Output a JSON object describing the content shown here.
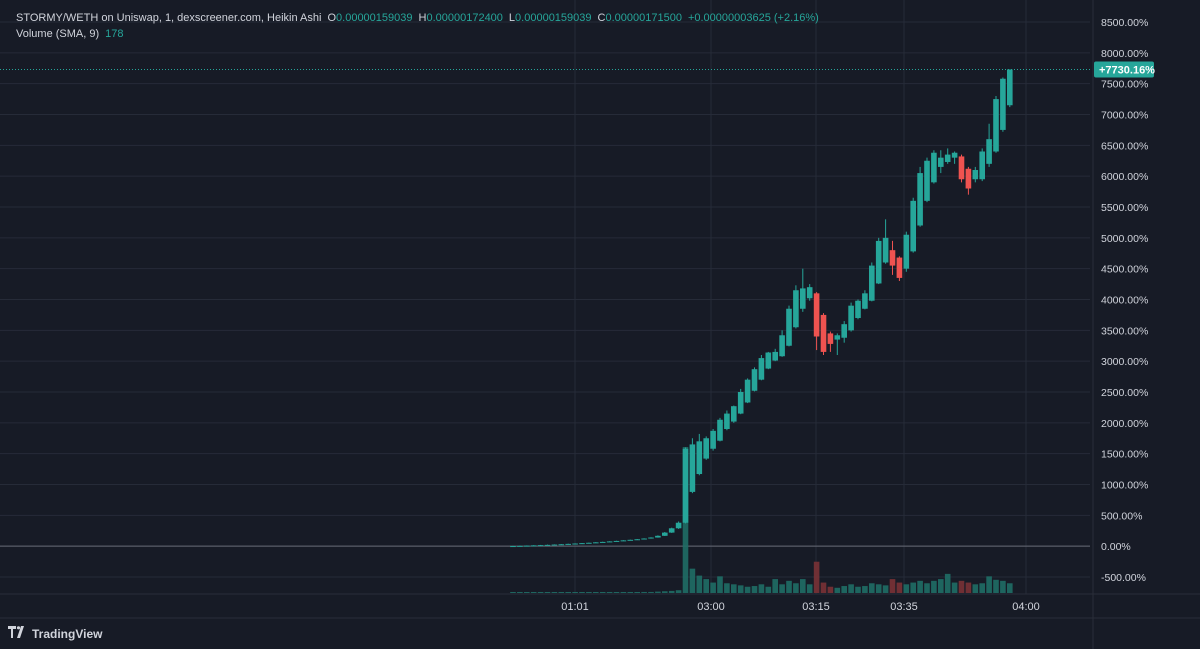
{
  "header": {
    "symbol": "STORMY/WETH on Uniswap, 1, dexscreener.com, Heikin Ashi",
    "o_label": "O",
    "o_value": "0.00000159039",
    "h_label": "H",
    "h_value": "0.00000172400",
    "l_label": "L",
    "l_value": "0.00000159039",
    "c_label": "C",
    "c_value": "0.00000171500",
    "change": "+0.00000003625 (+2.16%)",
    "volume_label": "Volume (SMA, 9)",
    "volume_value": "178"
  },
  "price_tag": "+7730.16%",
  "brand": {
    "icon": "tradingview-logo-icon",
    "name": "TradingView"
  },
  "colors": {
    "up": "#26a69a",
    "down": "#ef5350",
    "background": "#171b26",
    "grid": "#262b38",
    "text": "#d1d4dc"
  },
  "chart_data": {
    "type": "candlestick",
    "style": "Heikin Ashi",
    "y_unit": "%",
    "ylim": [
      -700,
      8700
    ],
    "y_ticks": [
      "8500.00%",
      "8000.00%",
      "7500.00%",
      "7000.00%",
      "6500.00%",
      "6000.00%",
      "5500.00%",
      "5000.00%",
      "4500.00%",
      "4000.00%",
      "3500.00%",
      "3000.00%",
      "2500.00%",
      "2000.00%",
      "1500.00%",
      "1000.00%",
      "500.00%",
      "0.00%",
      "-500.00%"
    ],
    "x_ticks": [
      "01:01",
      "03:00",
      "03:15",
      "03:35",
      "04:00"
    ],
    "grid": true,
    "candles": [
      {
        "o": 0,
        "h": 5,
        "l": 0,
        "c": 2,
        "v": 2
      },
      {
        "o": 2,
        "h": 8,
        "l": 0,
        "c": 5,
        "v": 2
      },
      {
        "o": 5,
        "h": 12,
        "l": 3,
        "c": 9,
        "v": 2
      },
      {
        "o": 9,
        "h": 16,
        "l": 7,
        "c": 13,
        "v": 2
      },
      {
        "o": 13,
        "h": 20,
        "l": 11,
        "c": 17,
        "v": 2
      },
      {
        "o": 17,
        "h": 25,
        "l": 15,
        "c": 21,
        "v": 2
      },
      {
        "o": 21,
        "h": 29,
        "l": 19,
        "c": 26,
        "v": 2
      },
      {
        "o": 26,
        "h": 34,
        "l": 24,
        "c": 31,
        "v": 2
      },
      {
        "o": 31,
        "h": 40,
        "l": 29,
        "c": 37,
        "v": 2
      },
      {
        "o": 37,
        "h": 46,
        "l": 35,
        "c": 43,
        "v": 2
      },
      {
        "o": 43,
        "h": 52,
        "l": 41,
        "c": 49,
        "v": 2
      },
      {
        "o": 49,
        "h": 58,
        "l": 47,
        "c": 55,
        "v": 2
      },
      {
        "o": 55,
        "h": 65,
        "l": 53,
        "c": 62,
        "v": 2
      },
      {
        "o": 62,
        "h": 72,
        "l": 60,
        "c": 69,
        "v": 2
      },
      {
        "o": 69,
        "h": 80,
        "l": 67,
        "c": 77,
        "v": 2
      },
      {
        "o": 77,
        "h": 88,
        "l": 75,
        "c": 85,
        "v": 2
      },
      {
        "o": 85,
        "h": 97,
        "l": 83,
        "c": 94,
        "v": 2
      },
      {
        "o": 94,
        "h": 106,
        "l": 92,
        "c": 103,
        "v": 2
      },
      {
        "o": 103,
        "h": 116,
        "l": 101,
        "c": 112,
        "v": 2
      },
      {
        "o": 112,
        "h": 128,
        "l": 110,
        "c": 124,
        "v": 3
      },
      {
        "o": 124,
        "h": 145,
        "l": 122,
        "c": 140,
        "v": 3
      },
      {
        "o": 140,
        "h": 175,
        "l": 138,
        "c": 168,
        "v": 4
      },
      {
        "o": 168,
        "h": 230,
        "l": 165,
        "c": 220,
        "v": 5
      },
      {
        "o": 220,
        "h": 300,
        "l": 215,
        "c": 290,
        "v": 6
      },
      {
        "o": 290,
        "h": 400,
        "l": 280,
        "c": 380,
        "v": 8
      },
      {
        "o": 380,
        "h": 1600,
        "l": 370,
        "c": 1580,
        "v": 420
      },
      {
        "o": 880,
        "h": 1750,
        "l": 860,
        "c": 1650,
        "v": 70
      },
      {
        "o": 1170,
        "h": 1820,
        "l": 1150,
        "c": 1700,
        "v": 50
      },
      {
        "o": 1420,
        "h": 1780,
        "l": 1400,
        "c": 1750,
        "v": 40
      },
      {
        "o": 1580,
        "h": 1900,
        "l": 1550,
        "c": 1870,
        "v": 30
      },
      {
        "o": 1710,
        "h": 2080,
        "l": 1700,
        "c": 2050,
        "v": 48
      },
      {
        "o": 1900,
        "h": 2200,
        "l": 1880,
        "c": 2150,
        "v": 28
      },
      {
        "o": 2020,
        "h": 2280,
        "l": 2000,
        "c": 2270,
        "v": 25
      },
      {
        "o": 2150,
        "h": 2550,
        "l": 2140,
        "c": 2500,
        "v": 22
      },
      {
        "o": 2330,
        "h": 2720,
        "l": 2320,
        "c": 2700,
        "v": 18
      },
      {
        "o": 2520,
        "h": 2900,
        "l": 2510,
        "c": 2870,
        "v": 20
      },
      {
        "o": 2700,
        "h": 3100,
        "l": 2690,
        "c": 3050,
        "v": 25
      },
      {
        "o": 2880,
        "h": 3150,
        "l": 2870,
        "c": 3140,
        "v": 18
      },
      {
        "o": 3010,
        "h": 3200,
        "l": 3000,
        "c": 3150,
        "v": 40
      },
      {
        "o": 3080,
        "h": 3500,
        "l": 3070,
        "c": 3420,
        "v": 25
      },
      {
        "o": 3250,
        "h": 3900,
        "l": 3240,
        "c": 3850,
        "v": 35
      },
      {
        "o": 3550,
        "h": 4230,
        "l": 3530,
        "c": 4150,
        "v": 28
      },
      {
        "o": 3850,
        "h": 4500,
        "l": 3800,
        "c": 4180,
        "v": 40
      },
      {
        "o": 4020,
        "h": 4250,
        "l": 3980,
        "c": 4200,
        "v": 25
      },
      {
        "o": 4100,
        "h": 4120,
        "l": 3180,
        "c": 3400,
        "v": 90
      },
      {
        "o": 3750,
        "h": 3780,
        "l": 3100,
        "c": 3150,
        "v": 30
      },
      {
        "o": 3450,
        "h": 3480,
        "l": 3150,
        "c": 3280,
        "v": 18
      },
      {
        "o": 3350,
        "h": 3450,
        "l": 3100,
        "c": 3420,
        "v": 15
      },
      {
        "o": 3380,
        "h": 3650,
        "l": 3300,
        "c": 3600,
        "v": 20
      },
      {
        "o": 3500,
        "h": 3950,
        "l": 3480,
        "c": 3900,
        "v": 25
      },
      {
        "o": 3700,
        "h": 4000,
        "l": 3680,
        "c": 3980,
        "v": 18
      },
      {
        "o": 3850,
        "h": 4150,
        "l": 3840,
        "c": 4100,
        "v": 20
      },
      {
        "o": 3980,
        "h": 4600,
        "l": 3970,
        "c": 4550,
        "v": 28
      },
      {
        "o": 4260,
        "h": 5000,
        "l": 4250,
        "c": 4950,
        "v": 25
      },
      {
        "o": 4600,
        "h": 5300,
        "l": 4580,
        "c": 5000,
        "v": 22
      },
      {
        "o": 4800,
        "h": 4950,
        "l": 4400,
        "c": 4550,
        "v": 40
      },
      {
        "o": 4680,
        "h": 4700,
        "l": 4300,
        "c": 4350,
        "v": 30
      },
      {
        "o": 4500,
        "h": 5100,
        "l": 4450,
        "c": 5050,
        "v": 25
      },
      {
        "o": 4780,
        "h": 5650,
        "l": 4760,
        "c": 5600,
        "v": 30
      },
      {
        "o": 5200,
        "h": 6150,
        "l": 5180,
        "c": 6050,
        "v": 35
      },
      {
        "o": 5600,
        "h": 6300,
        "l": 5580,
        "c": 6250,
        "v": 28
      },
      {
        "o": 5900,
        "h": 6420,
        "l": 5880,
        "c": 6380,
        "v": 35
      },
      {
        "o": 6150,
        "h": 6420,
        "l": 6050,
        "c": 6300,
        "v": 40
      },
      {
        "o": 6230,
        "h": 6450,
        "l": 6200,
        "c": 6350,
        "v": 55
      },
      {
        "o": 6300,
        "h": 6400,
        "l": 6200,
        "c": 6380,
        "v": 30
      },
      {
        "o": 6320,
        "h": 6350,
        "l": 5900,
        "c": 5950,
        "v": 35
      },
      {
        "o": 6120,
        "h": 6150,
        "l": 5700,
        "c": 5800,
        "v": 30
      },
      {
        "o": 5950,
        "h": 6150,
        "l": 5900,
        "c": 6100,
        "v": 25
      },
      {
        "o": 5950,
        "h": 6450,
        "l": 5920,
        "c": 6400,
        "v": 28
      },
      {
        "o": 6200,
        "h": 6850,
        "l": 6150,
        "c": 6600,
        "v": 48
      },
      {
        "o": 6400,
        "h": 7300,
        "l": 6380,
        "c": 7250,
        "v": 38
      },
      {
        "o": 6750,
        "h": 7600,
        "l": 6720,
        "c": 7580,
        "v": 35
      },
      {
        "o": 7150,
        "h": 7730,
        "l": 7120,
        "c": 7730,
        "v": 28
      }
    ]
  }
}
